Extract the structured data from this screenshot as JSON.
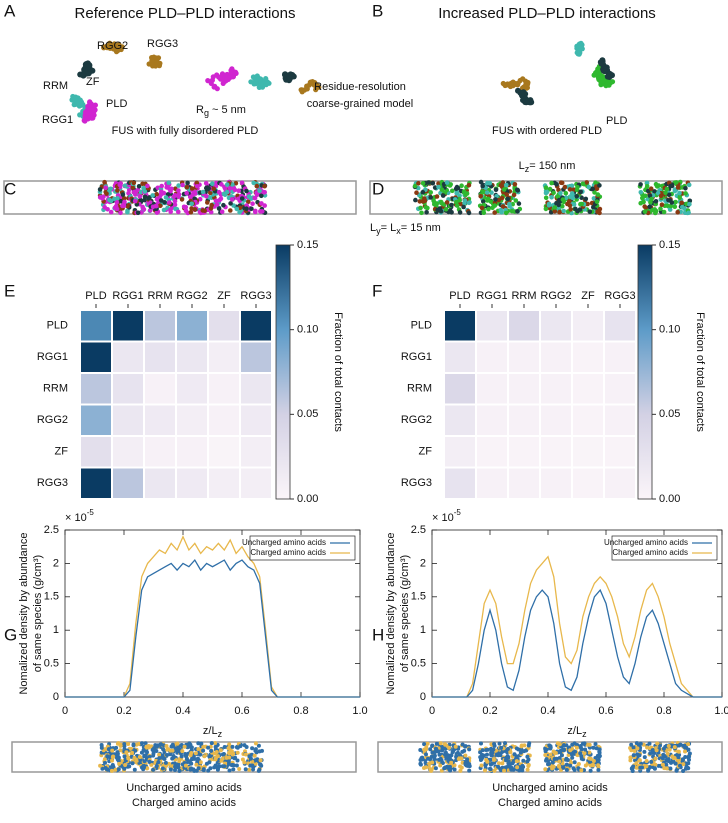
{
  "panel_labels": [
    "A",
    "B",
    "C",
    "D",
    "E",
    "F",
    "G",
    "H"
  ],
  "panel_a": {
    "title": "Reference PLD–PLD interactions",
    "domains": [
      "RGG2",
      "RGG3",
      "RRM",
      "ZF",
      "RGG1",
      "PLD"
    ],
    "rg": [
      "R",
      "g",
      " ~ 5 nm"
    ],
    "caption": "FUS with fully disordered PLD"
  },
  "model_note": [
    "Residue-resolution",
    "coarse-grained model"
  ],
  "panel_b": {
    "title": "Increased PLD–PLD interactions",
    "domain": "PLD",
    "caption": "FUS with ordered PLD"
  },
  "panel_d": {
    "lz": [
      "L",
      "z",
      "= 150 nm"
    ],
    "lxy": [
      "L",
      "y",
      "= L",
      "x",
      "= 15 nm"
    ]
  },
  "chart_data": [
    {
      "type": "heatmap",
      "x_categories": [
        "PLD",
        "RGG1",
        "RRM",
        "RGG2",
        "ZF",
        "RGG3"
      ],
      "y_categories": [
        "PLD",
        "RGG1",
        "RRM",
        "RGG2",
        "ZF",
        "RGG3"
      ],
      "values": [
        [
          0.11,
          0.15,
          0.06,
          0.08,
          0.03,
          0.15
        ],
        [
          0.15,
          0.02,
          0.025,
          0.02,
          0.01,
          0.06
        ],
        [
          0.06,
          0.025,
          0.005,
          0.015,
          0.005,
          0.02
        ],
        [
          0.08,
          0.02,
          0.015,
          0.01,
          0.005,
          0.015
        ],
        [
          0.03,
          0.01,
          0.005,
          0.005,
          0.002,
          0.01
        ],
        [
          0.15,
          0.06,
          0.02,
          0.015,
          0.01,
          0.01
        ]
      ],
      "zlim": [
        0,
        0.15
      ],
      "zticks": [
        {
          "value": 0,
          "label": "0.00"
        },
        {
          "value": 0.05,
          "label": "0.05"
        },
        {
          "value": 0.1,
          "label": "0.10"
        },
        {
          "value": 0.15,
          "label": "0.15"
        }
      ],
      "colorbar_label": "Fraction of total contacts",
      "colormap": [
        "#fbf5f9",
        "#d3d1e4",
        "#5d9bc8",
        "#0a3b63"
      ]
    },
    {
      "type": "heatmap",
      "x_categories": [
        "PLD",
        "RGG1",
        "RRM",
        "RGG2",
        "ZF",
        "RGG3"
      ],
      "y_categories": [
        "PLD",
        "RGG1",
        "RRM",
        "RGG2",
        "ZF",
        "RGG3"
      ],
      "values": [
        [
          0.15,
          0.02,
          0.04,
          0.02,
          0.01,
          0.025
        ],
        [
          0.02,
          0.005,
          0.005,
          0.005,
          0.003,
          0.005
        ],
        [
          0.04,
          0.005,
          0.005,
          0.005,
          0.003,
          0.005
        ],
        [
          0.02,
          0.005,
          0.005,
          0.005,
          0.003,
          0.005
        ],
        [
          0.01,
          0.003,
          0.003,
          0.003,
          0.002,
          0.003
        ],
        [
          0.025,
          0.005,
          0.005,
          0.005,
          0.003,
          0.005
        ]
      ],
      "zlim": [
        0,
        0.15
      ],
      "zticks": [
        {
          "value": 0,
          "label": "0.00"
        },
        {
          "value": 0.05,
          "label": "0.05"
        },
        {
          "value": 0.1,
          "label": "0.10"
        },
        {
          "value": 0.15,
          "label": "0.15"
        }
      ],
      "colorbar_label": "Fraction of total contacts",
      "colormap": [
        "#fbf5f9",
        "#d3d1e4",
        "#5d9bc8",
        "#0a3b63"
      ]
    },
    {
      "type": "line",
      "multiplier": [
        "× 10",
        "-5"
      ],
      "ylabel": [
        "Nomalized density by abundance",
        "of same species (g/cm³)"
      ],
      "xlabel": [
        "z/L",
        "z"
      ],
      "legend": "top-right",
      "x": [
        0,
        0.02,
        0.04,
        0.06,
        0.08,
        0.1,
        0.12,
        0.14,
        0.16,
        0.18,
        0.2,
        0.22,
        0.24,
        0.26,
        0.28,
        0.3,
        0.32,
        0.34,
        0.36,
        0.38,
        0.4,
        0.42,
        0.44,
        0.46,
        0.48,
        0.5,
        0.52,
        0.54,
        0.56,
        0.58,
        0.6,
        0.62,
        0.64,
        0.66,
        0.68,
        0.7,
        0.72,
        0.74,
        0.76,
        0.78,
        0.8,
        0.82,
        0.84,
        0.86,
        0.88,
        0.9,
        0.92,
        0.94,
        0.96,
        0.98,
        1
      ],
      "series": [
        {
          "name": "Uncharged amino acids",
          "color": "#2f6fa8",
          "values": [
            0,
            0,
            0,
            0,
            0,
            0,
            0,
            0,
            0,
            0,
            0,
            0.1,
            0.9,
            1.6,
            1.8,
            1.85,
            1.9,
            1.95,
            2.0,
            1.9,
            2.0,
            1.95,
            2.05,
            1.9,
            2.0,
            1.95,
            2.0,
            2.05,
            1.9,
            2.0,
            2.05,
            1.95,
            1.9,
            1.7,
            0.9,
            0.1,
            0,
            0,
            0,
            0,
            0,
            0,
            0,
            0,
            0,
            0,
            0,
            0,
            0,
            0,
            0
          ]
        },
        {
          "name": "Charged amino acids",
          "color": "#e8b84c",
          "values": [
            0,
            0,
            0,
            0,
            0,
            0,
            0,
            0,
            0,
            0,
            0,
            0.2,
            1.1,
            1.8,
            2.0,
            2.1,
            2.2,
            2.15,
            2.3,
            2.2,
            2.4,
            2.2,
            2.3,
            2.15,
            2.25,
            2.2,
            2.3,
            2.2,
            2.35,
            2.15,
            2.25,
            2.1,
            2.0,
            1.8,
            1.0,
            0.15,
            0,
            0,
            0,
            0,
            0,
            0,
            0,
            0,
            0,
            0,
            0,
            0,
            0,
            0,
            0
          ]
        }
      ],
      "xlim": [
        0,
        1
      ],
      "xticks": [
        0,
        0.2,
        0.4,
        0.6,
        0.8,
        {
          "value": 1,
          "label": "1.0"
        }
      ],
      "ylim": [
        0,
        2.5
      ],
      "yticks": [
        0,
        0.5,
        1,
        1.5,
        2,
        2.5
      ]
    },
    {
      "type": "line",
      "multiplier": [
        "× 10",
        "-5"
      ],
      "ylabel": [
        "Nomalized density by abundance",
        "of same species (g/cm³)"
      ],
      "xlabel": [
        "z/L",
        "z"
      ],
      "legend": "top-right",
      "x": [
        0,
        0.02,
        0.04,
        0.06,
        0.08,
        0.1,
        0.12,
        0.14,
        0.16,
        0.18,
        0.2,
        0.22,
        0.24,
        0.26,
        0.28,
        0.3,
        0.32,
        0.34,
        0.36,
        0.38,
        0.4,
        0.42,
        0.44,
        0.46,
        0.48,
        0.5,
        0.52,
        0.54,
        0.56,
        0.58,
        0.6,
        0.62,
        0.64,
        0.66,
        0.68,
        0.7,
        0.72,
        0.74,
        0.76,
        0.78,
        0.8,
        0.82,
        0.84,
        0.86,
        0.88,
        0.9,
        0.92,
        0.94,
        0.96,
        0.98,
        1
      ],
      "series": [
        {
          "name": "Uncharged amino acids",
          "color": "#2f6fa8",
          "values": [
            0,
            0,
            0,
            0,
            0,
            0,
            0,
            0.1,
            0.5,
            1.0,
            1.3,
            1.0,
            0.5,
            0.15,
            0.1,
            0.4,
            0.9,
            1.3,
            1.5,
            1.6,
            1.5,
            1.1,
            0.5,
            0.15,
            0.1,
            0.3,
            0.8,
            1.2,
            1.5,
            1.6,
            1.4,
            1.0,
            0.6,
            0.3,
            0.2,
            0.5,
            0.9,
            1.2,
            1.3,
            1.1,
            0.8,
            0.5,
            0.2,
            0.1,
            0.05,
            0,
            0,
            0,
            0,
            0,
            0
          ]
        },
        {
          "name": "Charged amino acids",
          "color": "#e8b84c",
          "values": [
            0,
            0,
            0,
            0,
            0,
            0,
            0,
            0.2,
            0.8,
            1.4,
            1.6,
            1.4,
            0.9,
            0.5,
            0.5,
            0.8,
            1.3,
            1.7,
            1.9,
            2.0,
            2.1,
            1.8,
            1.1,
            0.6,
            0.5,
            0.7,
            1.2,
            1.5,
            1.7,
            1.8,
            1.7,
            1.5,
            1.2,
            0.8,
            0.6,
            0.9,
            1.3,
            1.6,
            1.7,
            1.5,
            1.2,
            0.8,
            0.5,
            0.2,
            0.1,
            0,
            0,
            0,
            0,
            0,
            0
          ]
        }
      ],
      "xlim": [
        0,
        1
      ],
      "xticks": [
        0,
        0.2,
        0.4,
        0.6,
        0.8,
        {
          "value": 1,
          "label": "1.0"
        }
      ],
      "ylim": [
        0,
        2.5
      ],
      "yticks": [
        0,
        0.5,
        1,
        1.5,
        2,
        2.5
      ]
    }
  ]
}
